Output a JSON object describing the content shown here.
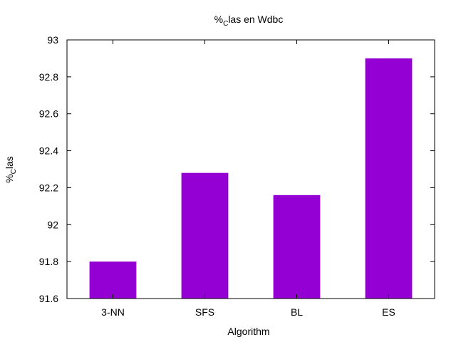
{
  "chart_data": {
    "type": "bar",
    "title": {
      "prefix": "%",
      "sub": "C",
      "suffix": "las en Wdbc"
    },
    "xlabel": "Algorithm",
    "ylabel": {
      "prefix": "%",
      "sub": "C",
      "suffix": "las"
    },
    "categories": [
      "3-NN",
      "SFS",
      "BL",
      "ES"
    ],
    "values": [
      91.8,
      92.28,
      92.16,
      92.9
    ],
    "ylim": [
      91.6,
      93
    ],
    "yticks": [
      91.6,
      91.8,
      92,
      92.2,
      92.4,
      92.6,
      92.8,
      93
    ],
    "ytick_labels": [
      "91.6",
      "91.8",
      "92",
      "92.2",
      "92.4",
      "92.6",
      "92.8",
      "93"
    ],
    "bar_color": "#9400d3",
    "grid": false,
    "legend": "none"
  }
}
